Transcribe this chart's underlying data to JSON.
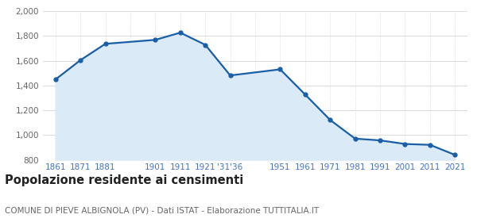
{
  "x_labels": [
    "1861",
    "1871",
    "1881",
    "",
    "1901",
    "1911",
    "1921",
    "'31'36",
    "",
    "1951",
    "1961",
    "1971",
    "1981",
    "1991",
    "2001",
    "2011",
    "2021"
  ],
  "x_positions": [
    0,
    1,
    2,
    3,
    4,
    5,
    6,
    7,
    8,
    9,
    10,
    11,
    12,
    13,
    14,
    15,
    16
  ],
  "y_values": [
    1448,
    1604,
    1736,
    1768,
    1826,
    1728,
    1481,
    1530,
    1327,
    1122,
    971,
    957,
    928,
    921,
    840
  ],
  "data_x": [
    0,
    1,
    2,
    4,
    5,
    6,
    7,
    9,
    10,
    11,
    12,
    13,
    14,
    15,
    16
  ],
  "line_color": "#1a5ea8",
  "fill_color": "#daeaf7",
  "marker_size": 3.5,
  "line_width": 1.6,
  "ylim": [
    800,
    2000
  ],
  "yticks": [
    800,
    1000,
    1200,
    1400,
    1600,
    1800,
    2000
  ],
  "ytick_labels": [
    "800",
    "1,000",
    "1,200",
    "1,400",
    "1,600",
    "1,800",
    "2,000"
  ],
  "grid_color": "#cccccc",
  "background_color": "#ffffff",
  "title": "Popolazione residente ai censimenti",
  "subtitle": "COMUNE DI PIEVE ALBIGNOLA (PV) - Dati ISTAT - Elaborazione TUTTITALIA.IT",
  "title_fontsize": 10.5,
  "subtitle_fontsize": 7.5,
  "tick_label_color": "#4472c4",
  "tick_fontsize": 7.5,
  "ytick_fontsize": 7.5
}
